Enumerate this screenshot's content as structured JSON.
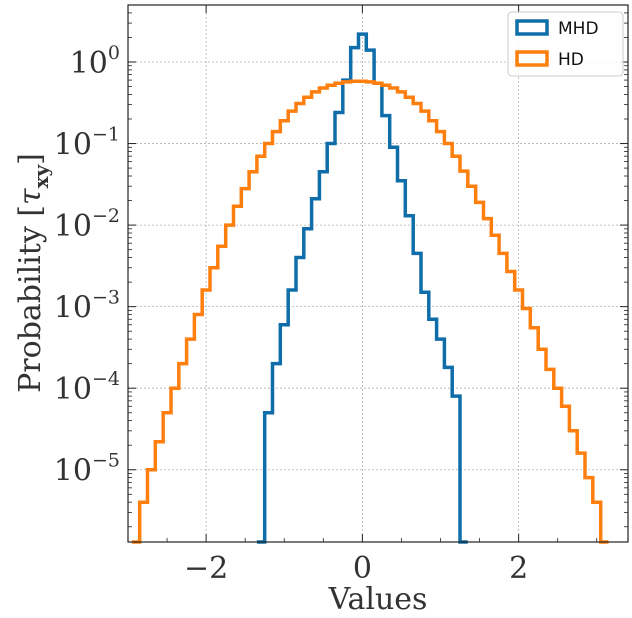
{
  "chart_data": {
    "type": "line",
    "xlabel": "Values",
    "ylabel": "Probability [τ_xy]",
    "ylabel_text": "Probability",
    "ylabel_symbol": "τ",
    "ylabel_subscript": "xy",
    "xlim": [
      -3.0,
      3.4
    ],
    "ylim": [
      1.3e-06,
      5.0
    ],
    "yscale": "log",
    "grid": true,
    "legend_position": "top-right",
    "x_ticks": [
      {
        "value": -2,
        "label": "−2"
      },
      {
        "value": 0,
        "label": "0"
      },
      {
        "value": 2,
        "label": "2"
      }
    ],
    "y_ticks": [
      {
        "value": 1,
        "base": "10",
        "exp": "0"
      },
      {
        "value": 0.1,
        "base": "10",
        "exp": "−1"
      },
      {
        "value": 0.01,
        "base": "10",
        "exp": "−2"
      },
      {
        "value": 0.001,
        "base": "10",
        "exp": "−3"
      },
      {
        "value": 0.0001,
        "base": "10",
        "exp": "−4"
      },
      {
        "value": 1e-05,
        "base": "10",
        "exp": "−5"
      }
    ],
    "series": [
      {
        "name": "MHD",
        "color": "#0f6eaa",
        "drawstyle": "steps",
        "x": [
          -1.3,
          -1.2,
          -1.1,
          -1.0,
          -0.9,
          -0.8,
          -0.7,
          -0.6,
          -0.5,
          -0.4,
          -0.3,
          -0.2,
          -0.1,
          0.0,
          0.1,
          0.2,
          0.3,
          0.4,
          0.5,
          0.6,
          0.7,
          0.8,
          0.9,
          1.0,
          1.1,
          1.2,
          1.3
        ],
        "y": [
          1.3e-06,
          5e-05,
          0.0002,
          0.0006,
          0.0016,
          0.004,
          0.009,
          0.021,
          0.045,
          0.1,
          0.24,
          0.6,
          1.5,
          2.2,
          1.4,
          0.55,
          0.22,
          0.09,
          0.035,
          0.013,
          0.0045,
          0.0015,
          0.0007,
          0.0004,
          0.00018,
          8e-05,
          1.3e-06
        ]
      },
      {
        "name": "HD",
        "color": "#ff7f0e",
        "drawstyle": "steps",
        "x": [
          -2.9,
          -2.8,
          -2.7,
          -2.6,
          -2.5,
          -2.4,
          -2.3,
          -2.2,
          -2.1,
          -2.0,
          -1.9,
          -1.8,
          -1.7,
          -1.6,
          -1.5,
          -1.4,
          -1.3,
          -1.2,
          -1.1,
          -1.0,
          -0.9,
          -0.8,
          -0.7,
          -0.6,
          -0.5,
          -0.4,
          -0.3,
          -0.2,
          -0.1,
          0.0,
          0.1,
          0.2,
          0.3,
          0.4,
          0.5,
          0.6,
          0.7,
          0.8,
          0.9,
          1.0,
          1.1,
          1.2,
          1.3,
          1.4,
          1.5,
          1.6,
          1.7,
          1.8,
          1.9,
          2.0,
          2.1,
          2.2,
          2.3,
          2.4,
          2.5,
          2.6,
          2.7,
          2.8,
          2.9,
          3.0,
          3.1
        ],
        "y": [
          1.3e-06,
          4e-06,
          1e-05,
          2.2e-05,
          5e-05,
          0.0001,
          0.0002,
          0.0004,
          0.0008,
          0.0016,
          0.003,
          0.0055,
          0.01,
          0.017,
          0.028,
          0.045,
          0.07,
          0.1,
          0.14,
          0.19,
          0.25,
          0.31,
          0.37,
          0.43,
          0.48,
          0.52,
          0.55,
          0.57,
          0.58,
          0.58,
          0.57,
          0.55,
          0.52,
          0.48,
          0.43,
          0.37,
          0.31,
          0.25,
          0.19,
          0.14,
          0.1,
          0.07,
          0.046,
          0.03,
          0.019,
          0.012,
          0.0075,
          0.0045,
          0.0027,
          0.0016,
          0.00095,
          0.00055,
          0.0003,
          0.00017,
          0.0001,
          6e-05,
          3e-05,
          1.6e-05,
          8e-06,
          4e-06,
          1.3e-06
        ]
      }
    ]
  }
}
